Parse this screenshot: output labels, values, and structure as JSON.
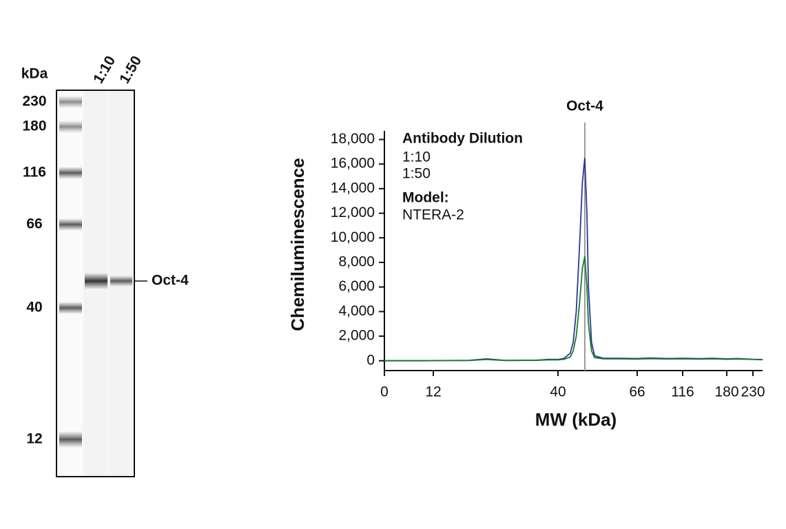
{
  "blot": {
    "unit_label": "kDa",
    "lanes": [
      "1:10",
      "1:50"
    ],
    "markers": [
      230,
      180,
      116,
      66,
      40,
      12
    ],
    "band_label": "Oct-4"
  },
  "chart_data": {
    "type": "line",
    "xlabel": "MW (kDa)",
    "ylabel": "Chemiluminescence",
    "legend_title": "Antibody Dilution",
    "model_label": "Model:",
    "model": "NTERA-2",
    "annotation": {
      "label": "Oct-4",
      "x": 48.8
    },
    "x": [
      0,
      5,
      10,
      15,
      20,
      24,
      28,
      35,
      38,
      40,
      42,
      44,
      45,
      46,
      47,
      48,
      48.8,
      49.5,
      50,
      51,
      52,
      55,
      60,
      66,
      80,
      100,
      116,
      140,
      160,
      180,
      200,
      230,
      250
    ],
    "series": [
      {
        "name": "1:10",
        "color": "#27379a",
        "values": [
          0,
          0,
          0,
          20,
          30,
          150,
          30,
          40,
          120,
          100,
          200,
          600,
          1500,
          4000,
          9000,
          14500,
          16500,
          12000,
          6000,
          1500,
          400,
          200,
          200,
          180,
          220,
          180,
          200,
          170,
          200,
          150,
          180,
          120,
          100
        ]
      },
      {
        "name": "1:50",
        "color": "#1c7a2c",
        "values": [
          0,
          0,
          0,
          10,
          20,
          100,
          20,
          30,
          80,
          70,
          120,
          300,
          800,
          2000,
          4500,
          7500,
          8500,
          6000,
          3000,
          800,
          250,
          150,
          150,
          130,
          170,
          140,
          150,
          130,
          150,
          120,
          140,
          100,
          80
        ]
      }
    ],
    "xlim": [
      0,
      250
    ],
    "xticks": [
      0,
      12,
      40,
      66,
      116,
      180,
      230
    ],
    "ylim": [
      -800,
      18700
    ],
    "yticks": [
      0,
      {
        "value": 2000,
        "label": "2,000"
      },
      {
        "value": 4000,
        "label": "4,000"
      },
      {
        "value": 6000,
        "label": "6,000"
      },
      {
        "value": 8000,
        "label": "8,000"
      },
      {
        "value": 10000,
        "label": "10,000"
      },
      {
        "value": 12000,
        "label": "12,000"
      },
      {
        "value": 14000,
        "label": "14,000"
      },
      {
        "value": 16000,
        "label": "16,000"
      },
      {
        "value": 18000,
        "label": "18,000"
      }
    ]
  }
}
